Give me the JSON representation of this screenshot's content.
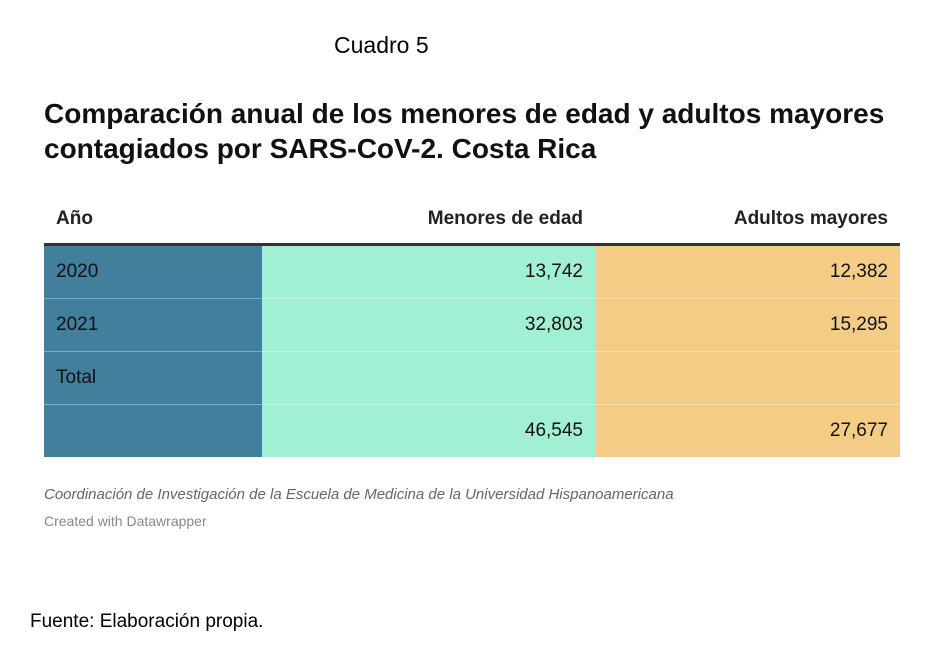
{
  "caption_label": "Cuadro 5",
  "chart_data": {
    "type": "table",
    "title": "Comparación anual de los  menores de edad y adultos mayores contagiados por SARS-CoV-2. Costa Rica",
    "columns": [
      "Año",
      "Menores de edad",
      "Adultos mayores"
    ],
    "rows": [
      {
        "year": "2020",
        "minors": "13,742",
        "adults": "12,382"
      },
      {
        "year": "2021",
        "minors": "32,803",
        "adults": "15,295"
      },
      {
        "year": "Total",
        "minors": "",
        "adults": ""
      },
      {
        "year": "",
        "minors": "46,545",
        "adults": "27,677"
      }
    ],
    "colors": {
      "year_column": "#417f9d",
      "minors_column": "#a1f0d3",
      "adults_column": "#f5cc85"
    }
  },
  "source_note": "Coordinación de Investigación de la Escuela de Medicina de la Universidad Hispanoamericana",
  "credit": "Created with Datawrapper",
  "footer_source": "Fuente: Elaboración propia."
}
